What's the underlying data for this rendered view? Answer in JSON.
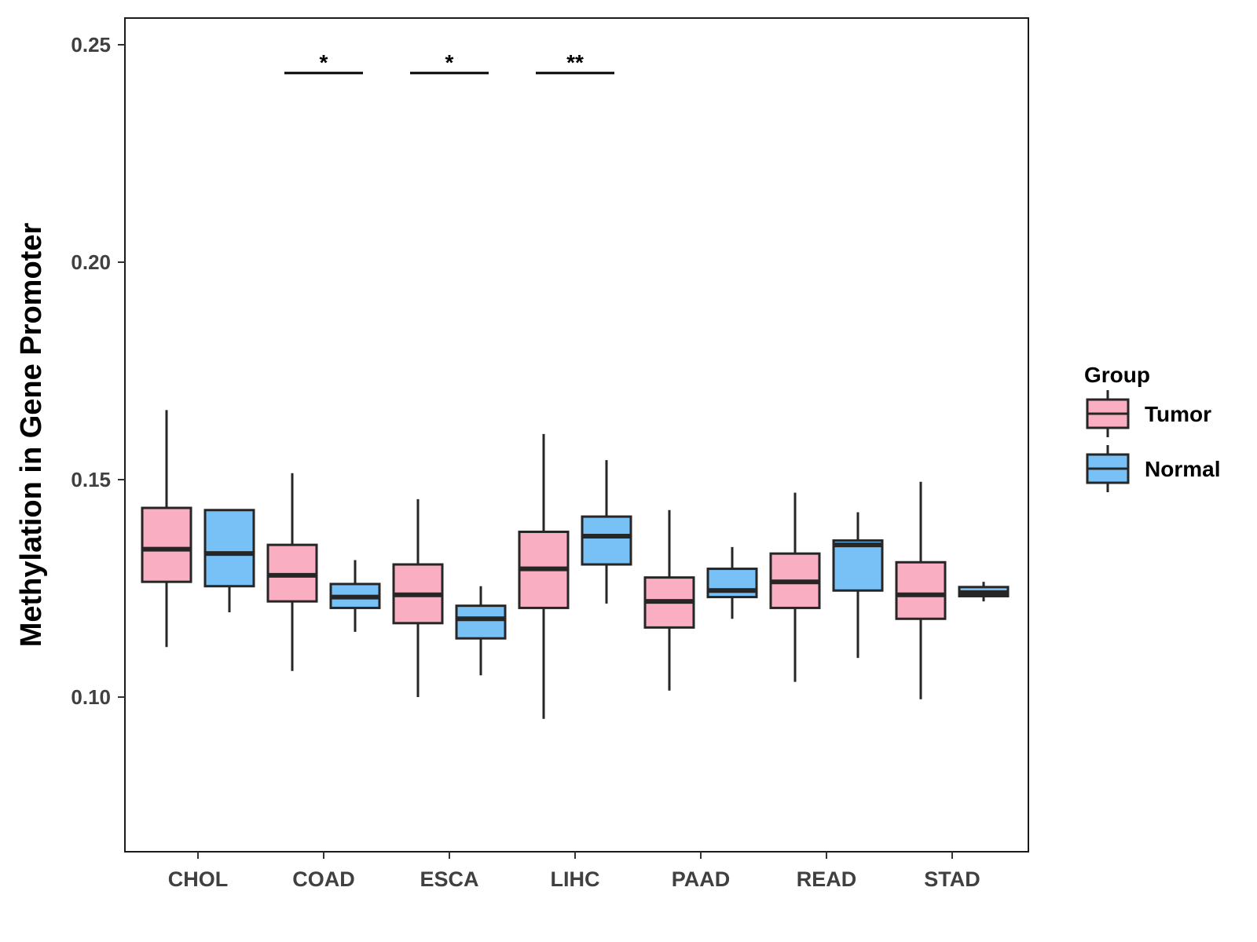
{
  "chart_data": {
    "type": "boxplot",
    "title": "",
    "xlabel": "",
    "ylabel": "Methylation in Gene Promoter",
    "ylim": [
      0.065,
      0.256
    ],
    "yticks": [
      0.1,
      0.15,
      0.2,
      0.25
    ],
    "ytick_labels": [
      "0.10",
      "0.15",
      "0.20",
      "0.25"
    ],
    "categories": [
      "CHOL",
      "COAD",
      "ESCA",
      "LIHC",
      "PAAD",
      "READ",
      "STAD"
    ],
    "legend": {
      "title": "Group",
      "position": "right",
      "entries": [
        {
          "name": "Tumor",
          "color": "#F9AFC1"
        },
        {
          "name": "Normal",
          "color": "#77C1F7"
        }
      ]
    },
    "series": [
      {
        "name": "Tumor",
        "color": "#F9AFC1",
        "boxes": [
          {
            "min": 0.1115,
            "q1": 0.1265,
            "median": 0.134,
            "q3": 0.1435,
            "max": 0.166
          },
          {
            "min": 0.106,
            "q1": 0.122,
            "median": 0.128,
            "q3": 0.135,
            "max": 0.1515
          },
          {
            "min": 0.1,
            "q1": 0.117,
            "median": 0.1235,
            "q3": 0.1305,
            "max": 0.1455
          },
          {
            "min": 0.095,
            "q1": 0.1205,
            "median": 0.1295,
            "q3": 0.138,
            "max": 0.1605
          },
          {
            "min": 0.1015,
            "q1": 0.116,
            "median": 0.122,
            "q3": 0.1275,
            "max": 0.143
          },
          {
            "min": 0.1035,
            "q1": 0.1205,
            "median": 0.1265,
            "q3": 0.133,
            "max": 0.147
          },
          {
            "min": 0.0995,
            "q1": 0.118,
            "median": 0.1235,
            "q3": 0.131,
            "max": 0.1495
          }
        ]
      },
      {
        "name": "Normal",
        "color": "#77C1F7",
        "boxes": [
          {
            "min": 0.1195,
            "q1": 0.1255,
            "median": 0.133,
            "q3": 0.143,
            "max": 0.143
          },
          {
            "min": 0.115,
            "q1": 0.1205,
            "median": 0.123,
            "q3": 0.126,
            "max": 0.1315
          },
          {
            "min": 0.105,
            "q1": 0.1135,
            "median": 0.118,
            "q3": 0.121,
            "max": 0.1255
          },
          {
            "min": 0.1215,
            "q1": 0.1305,
            "median": 0.137,
            "q3": 0.1415,
            "max": 0.1545
          },
          {
            "min": 0.118,
            "q1": 0.123,
            "median": 0.1245,
            "q3": 0.1295,
            "max": 0.1345
          },
          {
            "min": 0.109,
            "q1": 0.1245,
            "median": 0.135,
            "q3": 0.136,
            "max": 0.1425
          },
          {
            "min": 0.122,
            "q1": 0.1232,
            "median": 0.124,
            "q3": 0.1253,
            "max": 0.1265
          }
        ]
      }
    ],
    "significance": [
      {
        "category": "COAD",
        "label": "*",
        "y": 0.2435
      },
      {
        "category": "ESCA",
        "label": "*",
        "y": 0.2435
      },
      {
        "category": "LIHC",
        "label": "**",
        "y": 0.2435
      }
    ]
  }
}
